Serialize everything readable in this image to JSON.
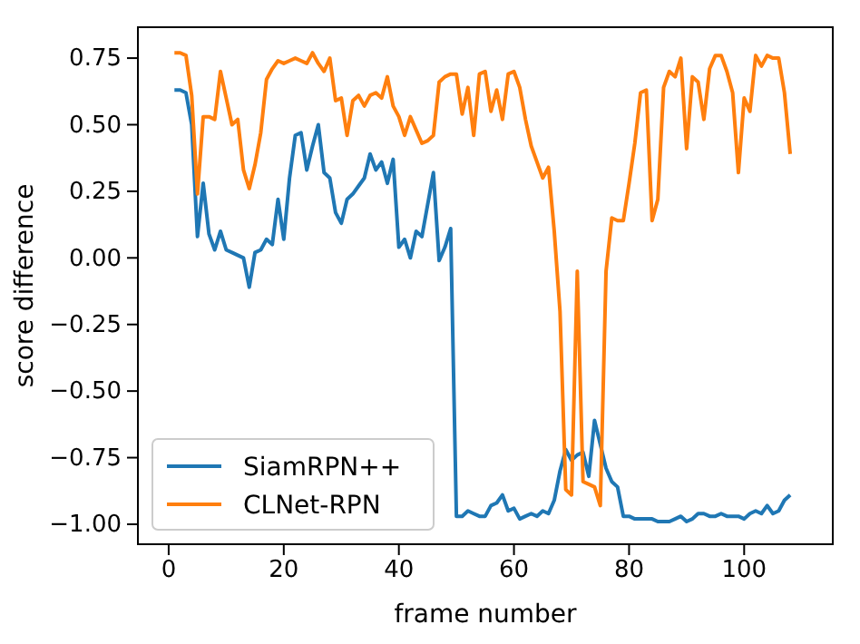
{
  "chart_data": {
    "type": "line",
    "xlabel": "frame number",
    "ylabel": "score difference",
    "xlim": [
      -5.35,
      115.4
    ],
    "ylim": [
      -1.075,
      0.866
    ],
    "xticks": [
      0,
      20,
      40,
      60,
      80,
      100
    ],
    "yticks": [
      {
        "value": -1.0,
        "label": "−1.00"
      },
      {
        "value": -0.75,
        "label": "−0.75"
      },
      {
        "value": -0.5,
        "label": "−0.50"
      },
      {
        "value": -0.25,
        "label": "−0.25"
      },
      {
        "value": 0,
        "label": "0.00"
      },
      {
        "value": 0.25,
        "label": "0.25"
      },
      {
        "value": 0.5,
        "label": "0.50"
      },
      {
        "value": 0.75,
        "label": "0.75"
      }
    ],
    "legend": "bottom left",
    "x": [
      1,
      2,
      3,
      4,
      5,
      6,
      7,
      8,
      9,
      10,
      11,
      12,
      13,
      14,
      15,
      16,
      17,
      18,
      19,
      20,
      21,
      22,
      23,
      24,
      25,
      26,
      27,
      28,
      29,
      30,
      31,
      32,
      33,
      34,
      35,
      36,
      37,
      38,
      39,
      40,
      41,
      42,
      43,
      44,
      45,
      46,
      47,
      48,
      49,
      50,
      51,
      52,
      53,
      54,
      55,
      56,
      57,
      58,
      59,
      60,
      61,
      62,
      63,
      64,
      65,
      66,
      67,
      68,
      69,
      70,
      71,
      72,
      73,
      74,
      75,
      76,
      77,
      78,
      79,
      80,
      81,
      82,
      83,
      84,
      85,
      86,
      87,
      88,
      89,
      90,
      91,
      92,
      93,
      94,
      95,
      96,
      97,
      98,
      99,
      100,
      101,
      102,
      103,
      104,
      105,
      106,
      107,
      108
    ],
    "series": [
      {
        "name": "SiamRPN++",
        "color": "#1f77b4",
        "values": [
          0.63,
          0.63,
          0.62,
          0.5,
          0.08,
          0.28,
          0.09,
          0.03,
          0.1,
          0.03,
          0.02,
          0.01,
          0.0,
          -0.11,
          0.02,
          0.03,
          0.07,
          0.05,
          0.22,
          0.07,
          0.3,
          0.46,
          0.47,
          0.33,
          0.42,
          0.5,
          0.32,
          0.3,
          0.17,
          0.13,
          0.22,
          0.24,
          0.27,
          0.3,
          0.39,
          0.33,
          0.36,
          0.28,
          0.37,
          0.04,
          0.07,
          0.0,
          0.1,
          0.08,
          0.2,
          0.32,
          -0.01,
          0.04,
          0.11,
          -0.97,
          -0.97,
          -0.95,
          -0.96,
          -0.97,
          -0.97,
          -0.93,
          -0.92,
          -0.89,
          -0.95,
          -0.94,
          -0.98,
          -0.97,
          -0.96,
          -0.97,
          -0.95,
          -0.96,
          -0.91,
          -0.8,
          -0.72,
          -0.76,
          -0.74,
          -0.73,
          -0.82,
          -0.61,
          -0.7,
          -0.79,
          -0.84,
          -0.86,
          -0.97,
          -0.97,
          -0.98,
          -0.98,
          -0.98,
          -0.98,
          -0.99,
          -0.99,
          -0.99,
          -0.98,
          -0.97,
          -0.99,
          -0.98,
          -0.96,
          -0.96,
          -0.97,
          -0.97,
          -0.96,
          -0.97,
          -0.97,
          -0.97,
          -0.98,
          -0.96,
          -0.95,
          -0.96,
          -0.93,
          -0.96,
          -0.95,
          -0.91,
          -0.89
        ]
      },
      {
        "name": "CLNet-RPN",
        "color": "#ff7f0e",
        "values": [
          0.77,
          0.77,
          0.76,
          0.61,
          0.24,
          0.53,
          0.53,
          0.52,
          0.7,
          0.6,
          0.5,
          0.52,
          0.33,
          0.26,
          0.35,
          0.47,
          0.67,
          0.71,
          0.74,
          0.73,
          0.74,
          0.75,
          0.74,
          0.73,
          0.77,
          0.73,
          0.7,
          0.75,
          0.59,
          0.6,
          0.46,
          0.59,
          0.61,
          0.57,
          0.61,
          0.62,
          0.6,
          0.68,
          0.57,
          0.53,
          0.46,
          0.53,
          0.48,
          0.43,
          0.44,
          0.46,
          0.66,
          0.68,
          0.69,
          0.69,
          0.54,
          0.64,
          0.46,
          0.69,
          0.7,
          0.55,
          0.63,
          0.52,
          0.69,
          0.7,
          0.64,
          0.52,
          0.42,
          0.36,
          0.3,
          0.34,
          0.1,
          -0.2,
          -0.87,
          -0.89,
          -0.05,
          -0.84,
          -0.85,
          -0.86,
          -0.93,
          -0.05,
          0.15,
          0.14,
          0.14,
          0.28,
          0.43,
          0.62,
          0.63,
          0.14,
          0.22,
          0.64,
          0.7,
          0.68,
          0.75,
          0.41,
          0.68,
          0.66,
          0.52,
          0.71,
          0.76,
          0.76,
          0.7,
          0.62,
          0.32,
          0.6,
          0.55,
          0.76,
          0.72,
          0.76,
          0.75,
          0.75,
          0.62,
          0.39
        ]
      }
    ]
  }
}
